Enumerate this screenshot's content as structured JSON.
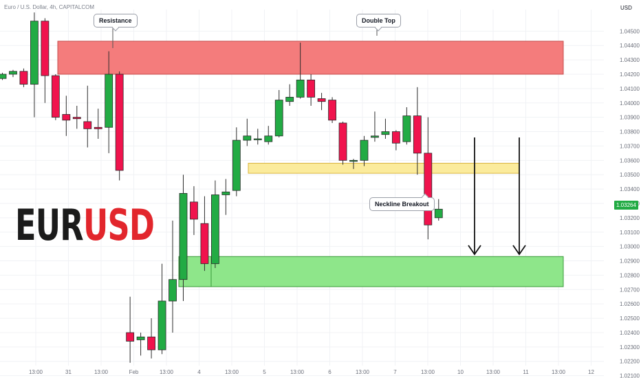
{
  "header": {
    "symbol_line": "Euro / U.S. Dollar, 4h, CAPITALCOM",
    "currency": "USD"
  },
  "logo": {
    "part1": "EUR",
    "part2": "USD"
  },
  "annotations": {
    "resistance": "Resistance",
    "double_top": "Double Top",
    "neckline_breakout": "Neckline Breakout"
  },
  "last_price": {
    "label": "1.03264",
    "value": 1.03264,
    "color": "#22ab44"
  },
  "colors": {
    "up": "#22ab44",
    "down": "#f0134d",
    "resistance_zone": "#f47c7c",
    "neckline_zone": "#fbeb9c",
    "target_zone": "#8ee68a",
    "grid": "#f0f2f5"
  },
  "chart_data": {
    "type": "candlestick",
    "ylim": [
      1.0217,
      1.0465
    ],
    "y_ticks": [
      "1.02100",
      "1.02200",
      "1.02300",
      "1.02400",
      "1.02500",
      "1.02600",
      "1.02700",
      "1.02800",
      "1.02900",
      "1.03000",
      "1.03100",
      "1.03200",
      "1.03300",
      "1.03400",
      "1.03500",
      "1.03600",
      "1.03700",
      "1.03800",
      "1.03900",
      "1.04000",
      "1.04100",
      "1.04200",
      "1.04300",
      "1.04400",
      "1.04500"
    ],
    "x_ticks": [
      "13:00",
      "31",
      "13:00",
      "Feb",
      "13:00",
      "4",
      "13:00",
      "5",
      "13:00",
      "6",
      "13:00",
      "7",
      "13:00",
      "10",
      "13:00",
      "11",
      "13:00",
      "12"
    ],
    "candles": [
      {
        "o": 1.0417,
        "h": 1.0421,
        "l": 1.0416,
        "c": 1.042
      },
      {
        "o": 1.042,
        "h": 1.0423,
        "l": 1.0418,
        "c": 1.0422
      },
      {
        "o": 1.0422,
        "h": 1.0424,
        "l": 1.0411,
        "c": 1.0413
      },
      {
        "o": 1.0413,
        "h": 1.0463,
        "l": 1.039,
        "c": 1.0457
      },
      {
        "o": 1.0457,
        "h": 1.0459,
        "l": 1.04,
        "c": 1.0419
      },
      {
        "o": 1.0419,
        "h": 1.042,
        "l": 1.0388,
        "c": 1.039
      },
      {
        "o": 1.0392,
        "h": 1.0405,
        "l": 1.0377,
        "c": 1.0388
      },
      {
        "o": 1.039,
        "h": 1.0398,
        "l": 1.0382,
        "c": 1.0389
      },
      {
        "o": 1.0387,
        "h": 1.0412,
        "l": 1.0369,
        "c": 1.0382
      },
      {
        "o": 1.0383,
        "h": 1.0396,
        "l": 1.0375,
        "c": 1.0382
      },
      {
        "o": 1.0383,
        "h": 1.0436,
        "l": 1.0365,
        "c": 1.042
      },
      {
        "o": 1.042,
        "h": 1.0422,
        "l": 1.0346,
        "c": 1.0353
      },
      {
        "o": 1.024,
        "h": 1.0265,
        "l": 1.0219,
        "c": 1.0234
      },
      {
        "o": 1.0235,
        "h": 1.024,
        "l": 1.0224,
        "c": 1.0237
      },
      {
        "o": 1.0237,
        "h": 1.025,
        "l": 1.0222,
        "c": 1.0228
      },
      {
        "o": 1.0228,
        "h": 1.0288,
        "l": 1.0225,
        "c": 1.0262
      },
      {
        "o": 1.0262,
        "h": 1.0318,
        "l": 1.024,
        "c": 1.0277
      },
      {
        "o": 1.0277,
        "h": 1.035,
        "l": 1.0262,
        "c": 1.0337
      },
      {
        "o": 1.0331,
        "h": 1.0342,
        "l": 1.0308,
        "c": 1.0319
      },
      {
        "o": 1.0316,
        "h": 1.0335,
        "l": 1.0283,
        "c": 1.0288
      },
      {
        "o": 1.0288,
        "h": 1.0346,
        "l": 1.0285,
        "c": 1.0336
      },
      {
        "o": 1.0336,
        "h": 1.0347,
        "l": 1.0322,
        "c": 1.0338
      },
      {
        "o": 1.0339,
        "h": 1.0383,
        "l": 1.0335,
        "c": 1.0374
      },
      {
        "o": 1.0374,
        "h": 1.0389,
        "l": 1.037,
        "c": 1.0377
      },
      {
        "o": 1.0375,
        "h": 1.0382,
        "l": 1.0371,
        "c": 1.0375
      },
      {
        "o": 1.0373,
        "h": 1.0384,
        "l": 1.0371,
        "c": 1.0377
      },
      {
        "o": 1.0377,
        "h": 1.0409,
        "l": 1.0376,
        "c": 1.0402
      },
      {
        "o": 1.0401,
        "h": 1.0413,
        "l": 1.0398,
        "c": 1.0404
      },
      {
        "o": 1.0404,
        "h": 1.0442,
        "l": 1.0403,
        "c": 1.0416
      },
      {
        "o": 1.0416,
        "h": 1.042,
        "l": 1.0398,
        "c": 1.0404
      },
      {
        "o": 1.0403,
        "h": 1.0407,
        "l": 1.0395,
        "c": 1.0401
      },
      {
        "o": 1.0402,
        "h": 1.0404,
        "l": 1.0386,
        "c": 1.0388
      },
      {
        "o": 1.0386,
        "h": 1.0387,
        "l": 1.0357,
        "c": 1.036
      },
      {
        "o": 1.036,
        "h": 1.0361,
        "l": 1.0354,
        "c": 1.036
      },
      {
        "o": 1.036,
        "h": 1.0377,
        "l": 1.0356,
        "c": 1.0374
      },
      {
        "o": 1.0376,
        "h": 1.0394,
        "l": 1.0373,
        "c": 1.0377
      },
      {
        "o": 1.0378,
        "h": 1.0389,
        "l": 1.0375,
        "c": 1.038
      },
      {
        "o": 1.038,
        "h": 1.0381,
        "l": 1.0367,
        "c": 1.0372
      },
      {
        "o": 1.0373,
        "h": 1.0397,
        "l": 1.0371,
        "c": 1.0391
      },
      {
        "o": 1.0391,
        "h": 1.0411,
        "l": 1.035,
        "c": 1.0365
      },
      {
        "o": 1.0365,
        "h": 1.039,
        "l": 1.0305,
        "c": 1.0315
      },
      {
        "o": 1.032,
        "h": 1.0333,
        "l": 1.0318,
        "c": 1.0326
      }
    ],
    "zones": [
      {
        "label": "resistance",
        "from": 1.042,
        "to": 1.0443
      },
      {
        "label": "neckline",
        "from": 1.0351,
        "to": 1.0358
      },
      {
        "label": "target",
        "from": 1.0272,
        "to": 1.0293
      }
    ]
  }
}
